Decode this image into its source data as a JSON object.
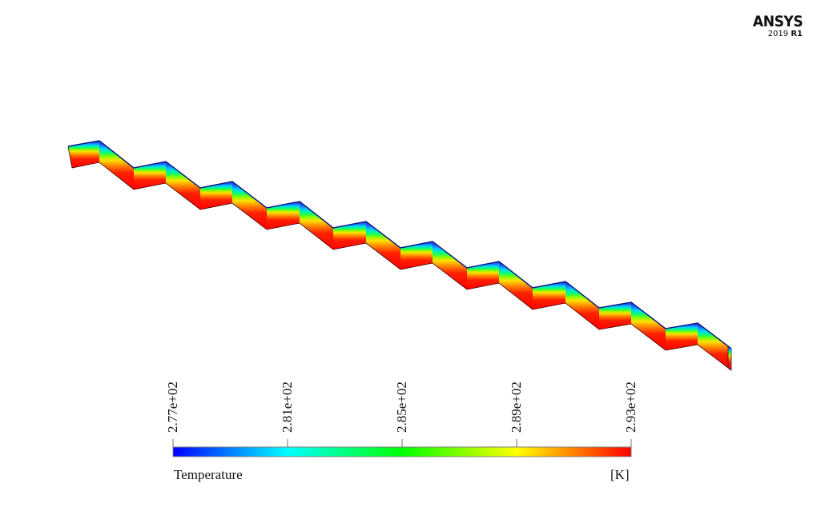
{
  "logo": {
    "brand": "ANSYS",
    "version_year": "2019",
    "version_release": "R1"
  },
  "legend": {
    "title": "Temperature",
    "unit": "[K]",
    "colormap": [
      "#0000ff",
      "#0080ff",
      "#00ffff",
      "#00ff80",
      "#00ff00",
      "#80ff00",
      "#ffff00",
      "#ff8000",
      "#ff0000"
    ],
    "ticks": [
      "2.77e+02",
      "2.81e+02",
      "2.85e+02",
      "2.89e+02",
      "2.93e+02"
    ],
    "min": 277,
    "max": 293
  },
  "contour": {
    "field": "Temperature",
    "geometry": "zig-zag channel (11 steps)",
    "hot_color": "#ff0000",
    "cold_edge_color": "#1040d0"
  }
}
